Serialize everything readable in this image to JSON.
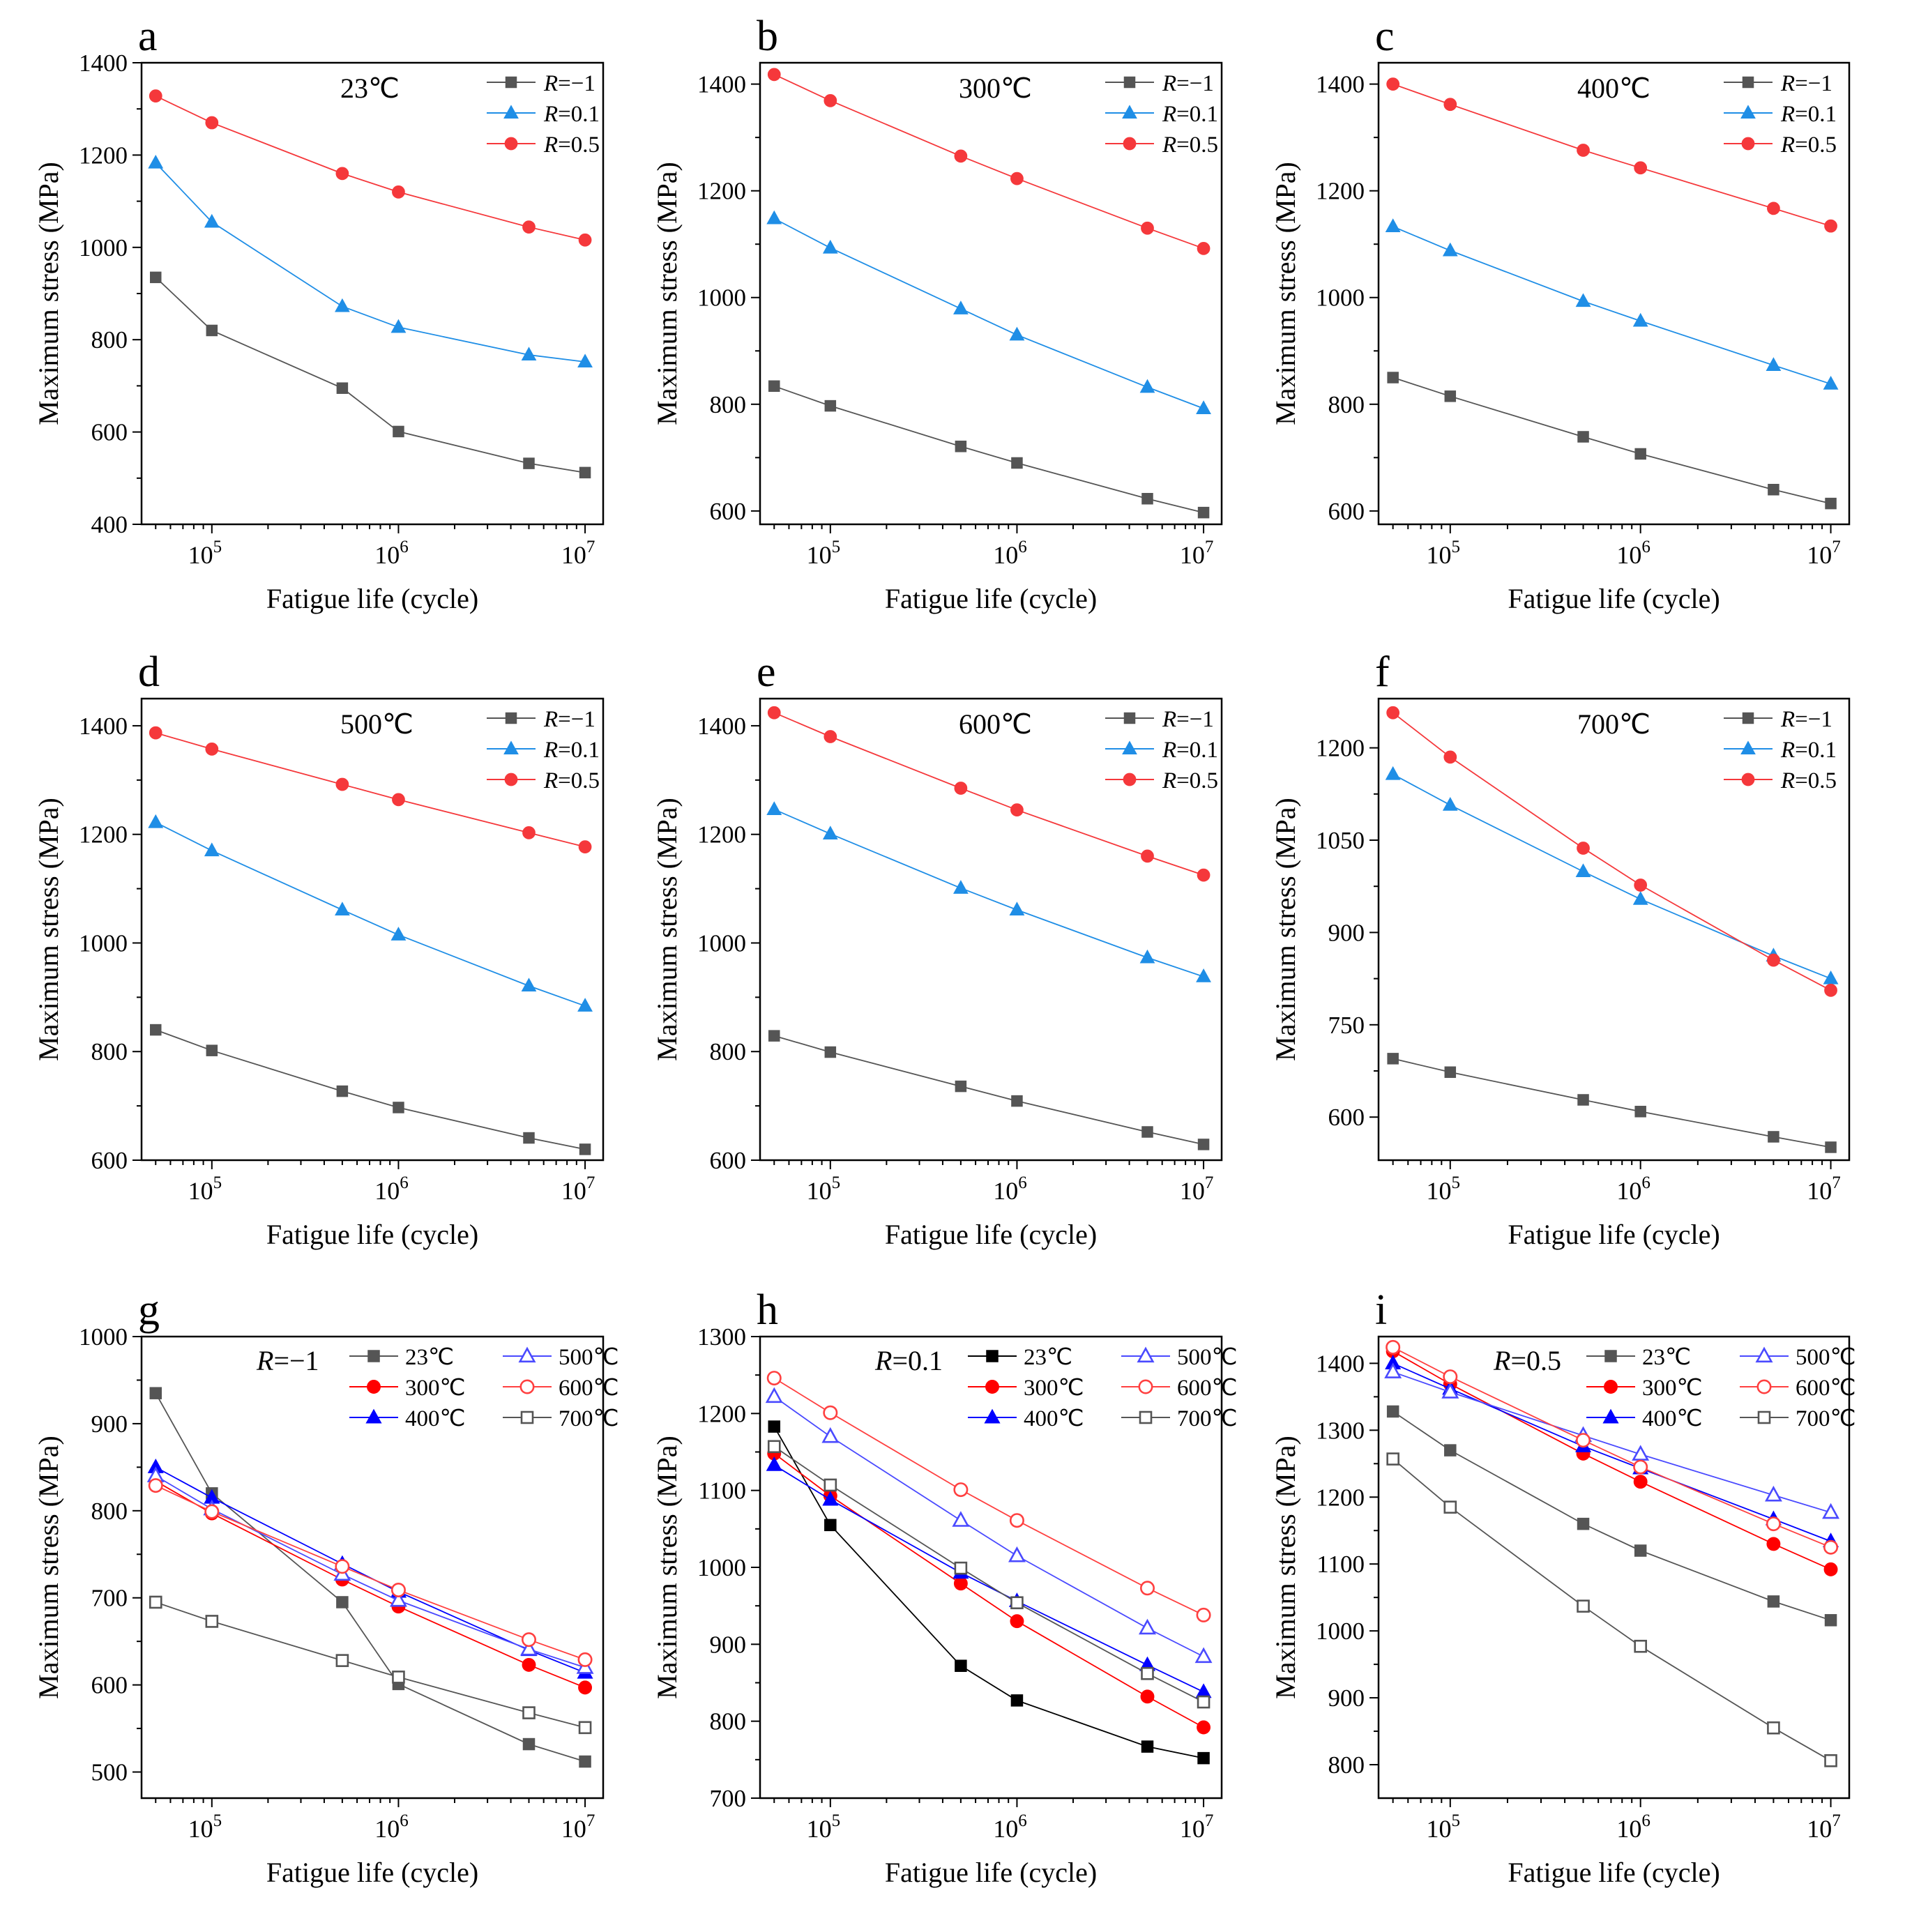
{
  "figure": {
    "x_values": [
      50000,
      100000,
      500000,
      1000000,
      5000000,
      10000000
    ],
    "x_ticks": [
      {
        "exp": "5",
        "value": 100000
      },
      {
        "exp": "6",
        "value": 1000000
      },
      {
        "exp": "7",
        "value": 10000000
      }
    ]
  },
  "chart_data": [
    {
      "type": "line",
      "letter": "a",
      "annotation": "23℃",
      "xlabel": "Fatigue life (cycle)",
      "ylabel": "Maximum stress (MPa)",
      "xscale": "log",
      "ylim": [
        400,
        1400
      ],
      "yticks": [
        400,
        600,
        800,
        1000,
        1200,
        1400
      ],
      "legend_position": "top-right",
      "series": [
        {
          "name": "R=−1",
          "prefix": "R",
          "value_label": "=−1",
          "color": "#555555",
          "marker": "square",
          "filled": true,
          "values": [
            935,
            820,
            695,
            601,
            532,
            512
          ]
        },
        {
          "name": "R=0.1",
          "prefix": "R",
          "value_label": "=0.1",
          "color": "#1f8ee6",
          "marker": "triangle",
          "filled": true,
          "values": [
            1183,
            1055,
            872,
            827,
            767,
            752
          ]
        },
        {
          "name": "R=0.5",
          "prefix": "R",
          "value_label": "=0.5",
          "color": "#f5383b",
          "marker": "circle",
          "filled": true,
          "values": [
            1328,
            1270,
            1160,
            1120,
            1044,
            1016
          ]
        }
      ]
    },
    {
      "type": "line",
      "letter": "b",
      "annotation": "300℃",
      "xlabel": "Fatigue life (cycle)",
      "ylabel": "Maximum stress (MPa)",
      "xscale": "log",
      "ylim": [
        575,
        1440
      ],
      "yticks": [
        600,
        800,
        1000,
        1200,
        1400
      ],
      "legend_position": "top-right",
      "series": [
        {
          "name": "R=−1",
          "prefix": "R",
          "value_label": "=−1",
          "color": "#555555",
          "marker": "square",
          "filled": true,
          "values": [
            834,
            797,
            721,
            690,
            623,
            597
          ]
        },
        {
          "name": "R=0.1",
          "prefix": "R",
          "value_label": "=0.1",
          "color": "#1f8ee6",
          "marker": "triangle",
          "filled": true,
          "values": [
            1148,
            1093,
            979,
            930,
            832,
            792
          ]
        },
        {
          "name": "R=0.5",
          "prefix": "R",
          "value_label": "=0.5",
          "color": "#f5383b",
          "marker": "circle",
          "filled": true,
          "values": [
            1418,
            1369,
            1265,
            1223,
            1130,
            1092
          ]
        }
      ]
    },
    {
      "type": "line",
      "letter": "c",
      "annotation": "400℃",
      "xlabel": "Fatigue life (cycle)",
      "ylabel": "Maximum stress (MPa)",
      "xscale": "log",
      "ylim": [
        575,
        1440
      ],
      "yticks": [
        600,
        800,
        1000,
        1200,
        1400
      ],
      "legend_position": "top-right",
      "series": [
        {
          "name": "R=−1",
          "prefix": "R",
          "value_label": "=−1",
          "color": "#555555",
          "marker": "square",
          "filled": true,
          "values": [
            850,
            815,
            739,
            707,
            640,
            614
          ]
        },
        {
          "name": "R=0.1",
          "prefix": "R",
          "value_label": "=0.1",
          "color": "#1f8ee6",
          "marker": "triangle",
          "filled": true,
          "values": [
            1133,
            1088,
            993,
            956,
            873,
            838
          ]
        },
        {
          "name": "R=0.5",
          "prefix": "R",
          "value_label": "=0.5",
          "color": "#f5383b",
          "marker": "circle",
          "filled": true,
          "values": [
            1400,
            1362,
            1276,
            1243,
            1167,
            1134
          ]
        }
      ]
    },
    {
      "type": "line",
      "letter": "d",
      "annotation": "500℃",
      "xlabel": "Fatigue life (cycle)",
      "ylabel": "Maximum stress (MPa)",
      "xscale": "log",
      "ylim": [
        600,
        1450
      ],
      "yticks": [
        600,
        800,
        1000,
        1200,
        1400
      ],
      "legend_position": "top-right",
      "series": [
        {
          "name": "R=−1",
          "prefix": "R",
          "value_label": "=−1",
          "color": "#555555",
          "marker": "square",
          "filled": true,
          "values": [
            840,
            802,
            727,
            697,
            641,
            620
          ]
        },
        {
          "name": "R=0.1",
          "prefix": "R",
          "value_label": "=0.1",
          "color": "#1f8ee6",
          "marker": "triangle",
          "filled": true,
          "values": [
            1222,
            1170,
            1061,
            1015,
            921,
            884
          ]
        },
        {
          "name": "R=0.5",
          "prefix": "R",
          "value_label": "=0.5",
          "color": "#f5383b",
          "marker": "circle",
          "filled": true,
          "values": [
            1387,
            1357,
            1292,
            1264,
            1203,
            1177
          ]
        }
      ]
    },
    {
      "type": "line",
      "letter": "e",
      "annotation": "600℃",
      "xlabel": "Fatigue life (cycle)",
      "ylabel": "Maximum stress (MPa)",
      "xscale": "log",
      "ylim": [
        600,
        1450
      ],
      "yticks": [
        600,
        800,
        1000,
        1200,
        1400
      ],
      "legend_position": "top-right",
      "series": [
        {
          "name": "R=−1",
          "prefix": "R",
          "value_label": "=−1",
          "color": "#555555",
          "marker": "square",
          "filled": true,
          "values": [
            829,
            799,
            736,
            709,
            652,
            629
          ]
        },
        {
          "name": "R=0.1",
          "prefix": "R",
          "value_label": "=0.1",
          "color": "#1f8ee6",
          "marker": "triangle",
          "filled": true,
          "values": [
            1246,
            1201,
            1101,
            1061,
            973,
            938
          ]
        },
        {
          "name": "R=0.5",
          "prefix": "R",
          "value_label": "=0.5",
          "color": "#f5383b",
          "marker": "circle",
          "filled": true,
          "values": [
            1424,
            1380,
            1285,
            1245,
            1160,
            1125
          ]
        }
      ]
    },
    {
      "type": "line",
      "letter": "f",
      "annotation": "700℃",
      "xlabel": "Fatigue life (cycle)",
      "ylabel": "Maximum stress (MPa)",
      "xscale": "log",
      "ylim": [
        530,
        1280
      ],
      "yticks": [
        600,
        750,
        900,
        1050,
        1200
      ],
      "legend_position": "top-right",
      "series": [
        {
          "name": "R=−1",
          "prefix": "R",
          "value_label": "=−1",
          "color": "#555555",
          "marker": "square",
          "filled": true,
          "values": [
            695,
            673,
            628,
            609,
            568,
            551
          ]
        },
        {
          "name": "R=0.1",
          "prefix": "R",
          "value_label": "=0.1",
          "color": "#1f8ee6",
          "marker": "triangle",
          "filled": true,
          "values": [
            1157,
            1107,
            999,
            954,
            862,
            825
          ]
        },
        {
          "name": "R=0.5",
          "prefix": "R",
          "value_label": "=0.5",
          "color": "#f5383b",
          "marker": "circle",
          "filled": true,
          "values": [
            1257,
            1185,
            1037,
            977,
            855,
            806
          ]
        }
      ]
    },
    {
      "type": "line",
      "letter": "g",
      "annotation_prefix": "R",
      "annotation_value": "=−1",
      "xlabel": "Fatigue life (cycle)",
      "ylabel": "Maximum stress (MPa)",
      "xscale": "log",
      "ylim": [
        470,
        1000
      ],
      "yticks": [
        500,
        600,
        700,
        800,
        900,
        1000
      ],
      "legend_position": "top-right",
      "legend_columns": 2,
      "series": [
        {
          "name": "23℃",
          "color": "#555555",
          "marker": "square",
          "filled": true,
          "values": [
            935,
            820,
            695,
            601,
            532,
            512
          ]
        },
        {
          "name": "300℃",
          "color": "#ff0000",
          "marker": "circle",
          "filled": true,
          "values": [
            834,
            797,
            721,
            690,
            623,
            597
          ]
        },
        {
          "name": "400℃",
          "color": "#0000ff",
          "marker": "triangle",
          "filled": true,
          "values": [
            850,
            815,
            739,
            707,
            640,
            614
          ]
        },
        {
          "name": "500℃",
          "color": "#4a4aff",
          "marker": "triangle",
          "filled": false,
          "values": [
            840,
            802,
            727,
            697,
            641,
            620
          ]
        },
        {
          "name": "600℃",
          "color": "#ff4040",
          "marker": "circle",
          "filled": false,
          "values": [
            829,
            799,
            736,
            709,
            652,
            629
          ]
        },
        {
          "name": "700℃",
          "color": "#555555",
          "marker": "square",
          "filled": false,
          "values": [
            695,
            673,
            628,
            609,
            568,
            551
          ]
        }
      ]
    },
    {
      "type": "line",
      "letter": "h",
      "annotation_prefix": "R",
      "annotation_value": "=0.1",
      "xlabel": "Fatigue life (cycle)",
      "ylabel": "Maximum stress (MPa)",
      "xscale": "log",
      "ylim": [
        700,
        1300
      ],
      "yticks": [
        700,
        800,
        900,
        1000,
        1100,
        1200,
        1300
      ],
      "legend_position": "top-right",
      "legend_columns": 2,
      "series": [
        {
          "name": "23℃",
          "color": "#000000",
          "marker": "square",
          "filled": true,
          "values": [
            1183,
            1055,
            872,
            827,
            767,
            752
          ]
        },
        {
          "name": "300℃",
          "color": "#ff0000",
          "marker": "circle",
          "filled": true,
          "values": [
            1148,
            1093,
            979,
            930,
            832,
            792
          ]
        },
        {
          "name": "400℃",
          "color": "#0000ff",
          "marker": "triangle",
          "filled": true,
          "values": [
            1133,
            1088,
            993,
            956,
            873,
            838
          ]
        },
        {
          "name": "500℃",
          "color": "#4a4aff",
          "marker": "triangle",
          "filled": false,
          "values": [
            1222,
            1170,
            1061,
            1015,
            921,
            884
          ]
        },
        {
          "name": "600℃",
          "color": "#ff4040",
          "marker": "circle",
          "filled": false,
          "values": [
            1246,
            1201,
            1101,
            1061,
            973,
            938
          ]
        },
        {
          "name": "700℃",
          "color": "#555555",
          "marker": "square",
          "filled": false,
          "values": [
            1157,
            1107,
            999,
            954,
            862,
            825
          ]
        }
      ]
    },
    {
      "type": "line",
      "letter": "i",
      "annotation_prefix": "R",
      "annotation_value": "=0.5",
      "xlabel": "Fatigue life (cycle)",
      "ylabel": "Maximum stress (MPa)",
      "xscale": "log",
      "ylim": [
        750,
        1440
      ],
      "yticks": [
        800,
        900,
        1000,
        1100,
        1200,
        1300,
        1400
      ],
      "legend_position": "top-right",
      "legend_columns": 2,
      "series": [
        {
          "name": "23℃",
          "color": "#555555",
          "marker": "square",
          "filled": true,
          "values": [
            1328,
            1270,
            1160,
            1120,
            1044,
            1016
          ]
        },
        {
          "name": "300℃",
          "color": "#ff0000",
          "marker": "circle",
          "filled": true,
          "values": [
            1418,
            1369,
            1265,
            1223,
            1130,
            1092
          ]
        },
        {
          "name": "400℃",
          "color": "#0000ff",
          "marker": "triangle",
          "filled": true,
          "values": [
            1400,
            1362,
            1276,
            1243,
            1167,
            1134
          ]
        },
        {
          "name": "500℃",
          "color": "#4a4aff",
          "marker": "triangle",
          "filled": false,
          "values": [
            1387,
            1357,
            1292,
            1264,
            1203,
            1177
          ]
        },
        {
          "name": "600℃",
          "color": "#ff4040",
          "marker": "circle",
          "filled": false,
          "values": [
            1424,
            1380,
            1285,
            1245,
            1160,
            1125
          ]
        },
        {
          "name": "700℃",
          "color": "#555555",
          "marker": "square",
          "filled": false,
          "values": [
            1257,
            1185,
            1037,
            977,
            855,
            806
          ]
        }
      ]
    }
  ]
}
